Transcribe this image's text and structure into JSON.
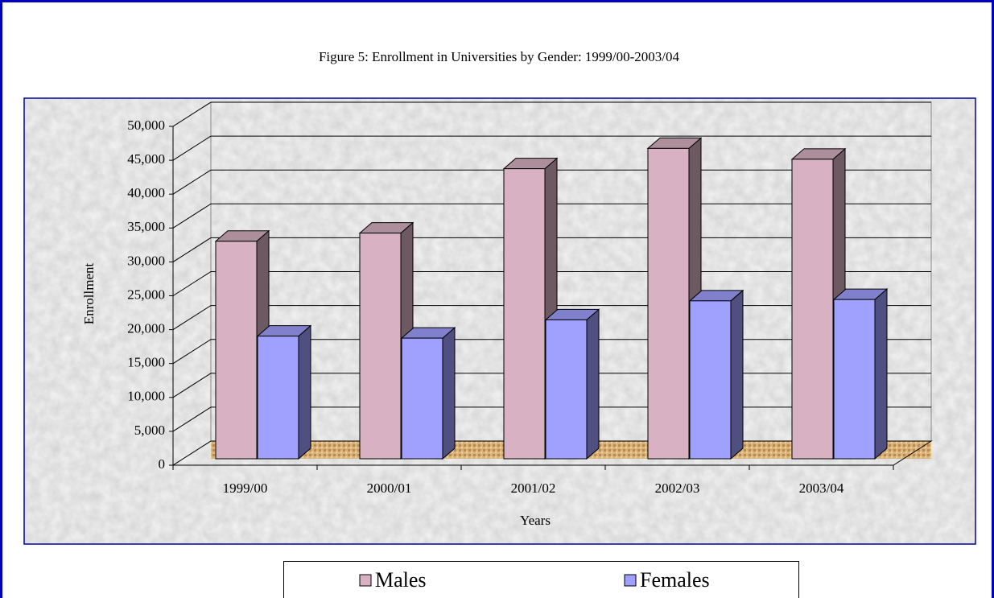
{
  "chart_data": {
    "type": "bar3d",
    "title": "Figure 5: Enrollment in Universities by Gender: 1999/00-2003/04",
    "x_label": "Years",
    "y_label": "Enrollment",
    "categories": [
      "1999/00",
      "2000/01",
      "2001/02",
      "2002/03",
      "2003/04"
    ],
    "series": [
      {
        "name": "Males",
        "color": "#d8b2c2",
        "values": [
          32100,
          33300,
          42800,
          45800,
          44200
        ]
      },
      {
        "name": "Females",
        "color": "#a0a0ff",
        "values": [
          18100,
          17800,
          20500,
          23300,
          23500
        ]
      }
    ],
    "ylim": [
      0,
      50000
    ],
    "yticks": [
      0,
      {
        "value": 5000,
        "label": "5,000"
      },
      {
        "value": 10000,
        "label": "10,000"
      },
      {
        "value": 15000,
        "label": "15,000"
      },
      {
        "value": 20000,
        "label": "20,000"
      },
      {
        "value": 25000,
        "label": "25,000"
      },
      {
        "value": 30000,
        "label": "30,000"
      },
      {
        "value": 35000,
        "label": "35,000"
      },
      {
        "value": 40000,
        "label": "40,000"
      },
      {
        "value": 45000,
        "label": "45,000"
      },
      {
        "value": 50000,
        "label": "50,000"
      }
    ],
    "grid": true,
    "legend": "bottom"
  }
}
